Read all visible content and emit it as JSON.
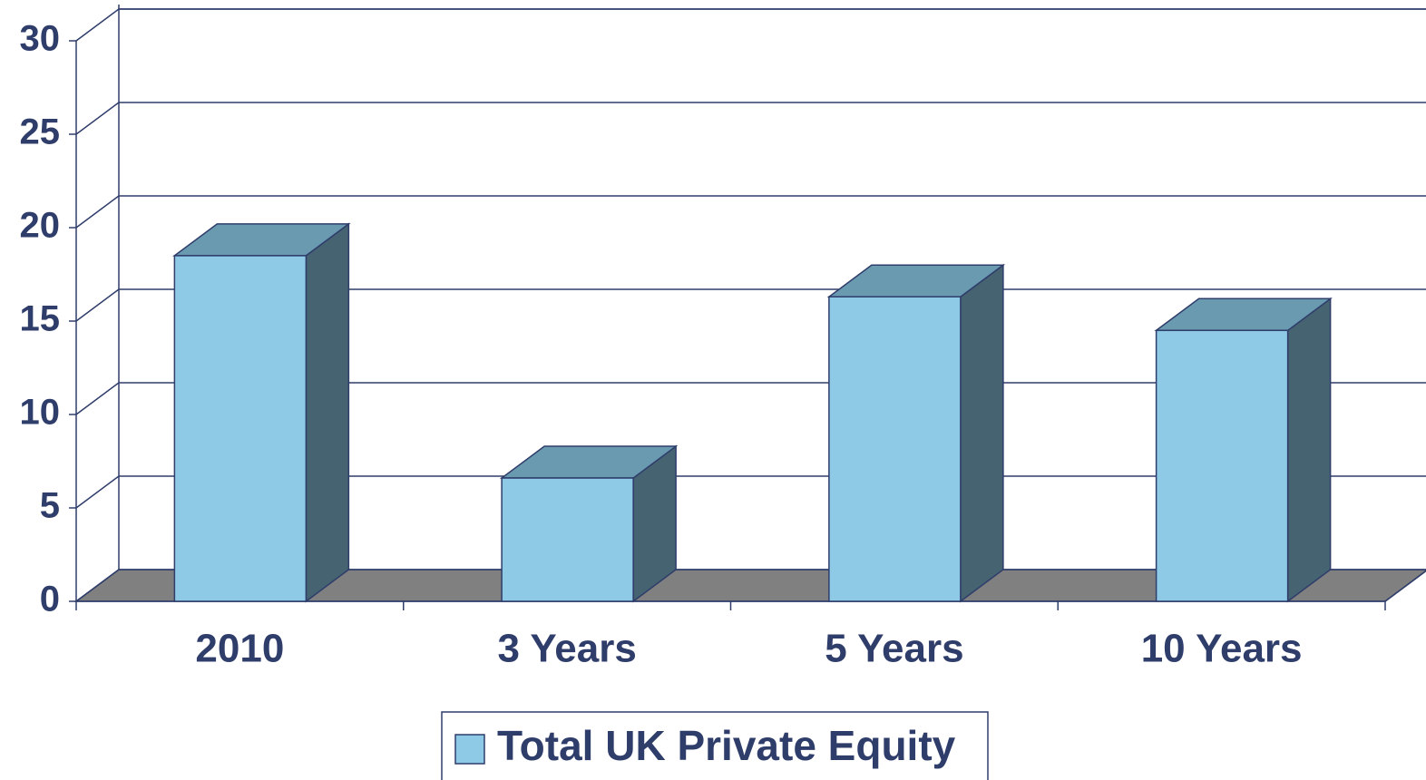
{
  "chart_data": {
    "type": "bar3d",
    "categories": [
      "2010",
      "3 Years",
      "5 Years",
      "10 Years"
    ],
    "series": [
      {
        "name": "Total UK Private Equity",
        "color": "#8ecae6",
        "values": [
          18.5,
          6.6,
          16.3,
          14.5
        ]
      }
    ],
    "ylim": [
      0,
      30
    ],
    "yticks": [
      0,
      5,
      10,
      15,
      20,
      25,
      30
    ],
    "grid": true,
    "legend": "bottom"
  }
}
